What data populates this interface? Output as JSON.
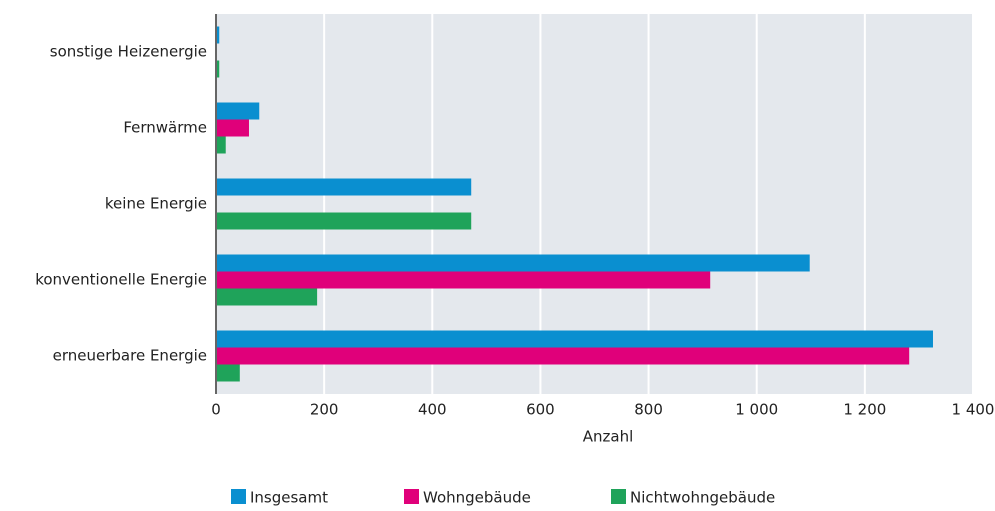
{
  "chart_data": {
    "type": "bar",
    "orientation": "horizontal",
    "categories": [
      "sonstige Heizenergie",
      "Fernwärme",
      "keine Energie",
      "konventionelle Energie",
      "erneuerbare Energie"
    ],
    "series": [
      {
        "name": "Insgesamt",
        "color": "#0a8fd0",
        "values": [
          6,
          80,
          472,
          1098,
          1326
        ]
      },
      {
        "name": "Wohngebäude",
        "color": "#e0007a",
        "values": [
          0,
          61,
          0,
          914,
          1282
        ]
      },
      {
        "name": "Nichtwohngebäude",
        "color": "#1fa35a",
        "values": [
          6,
          18,
          472,
          187,
          44
        ]
      }
    ],
    "x_label": "Anzahl",
    "xlim": [
      0,
      1400
    ],
    "xticks": [
      0,
      200,
      400,
      600,
      800,
      {
        "value": 1000,
        "label": "1 000"
      },
      {
        "value": 1200,
        "label": "1 200"
      },
      {
        "value": 1400,
        "label": "1 400"
      }
    ],
    "grid": true,
    "legend": "bottom"
  }
}
